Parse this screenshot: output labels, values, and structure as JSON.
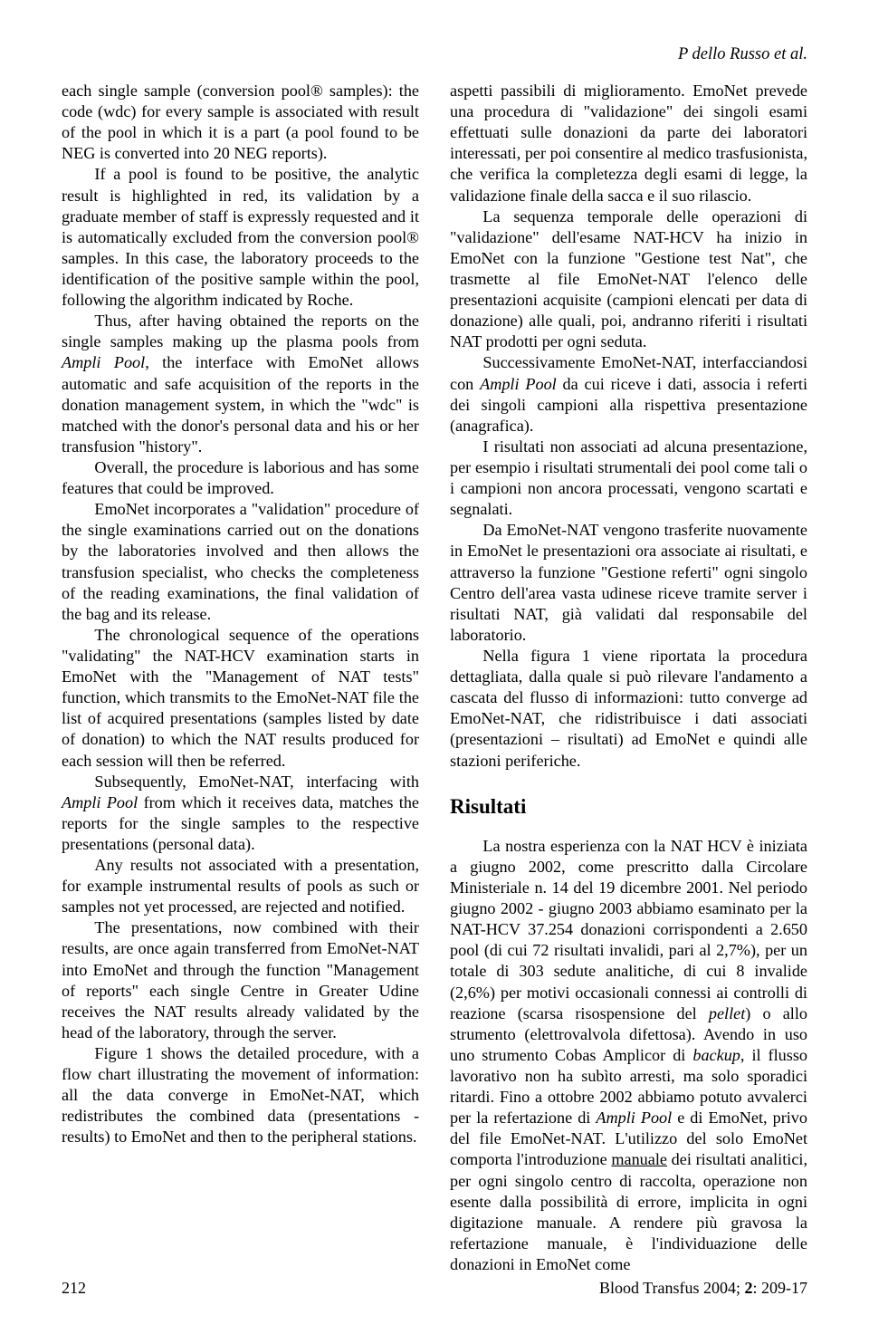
{
  "running_head": "P dello Russo et al.",
  "left": {
    "p1": "each single sample (conversion pool® samples): the code (wdc) for every sample is associated with result of the pool in which it is a part (a pool found to be NEG is converted into 20 NEG reports).",
    "p2": "If a pool is found to be positive, the analytic result is highlighted in red, its validation by a graduate member of staff is expressly requested and it is automatically excluded from the conversion pool® samples. In this case, the laboratory proceeds to the identification of the positive sample within the pool, following the algorithm indicated by Roche.",
    "p3a": "Thus, after having obtained the reports on the single samples making up the plasma pools from ",
    "p3_i": "Ampli Pool",
    "p3b": ", the interface with EmoNet allows automatic and safe acquisition of the reports in the donation management system, in which the \"wdc\" is matched with the donor's personal data and his or her transfusion \"history\".",
    "p4": "Overall, the procedure is laborious and has some features that could be improved.",
    "p5": "EmoNet incorporates a \"validation\" procedure of the single examinations carried out on the donations by the laboratories involved and then allows the transfusion specialist, who checks the completeness of the reading examinations, the final validation of the bag and its release.",
    "p6": "The chronological sequence of the operations \"validating\" the NAT-HCV examination starts in EmoNet with the \"Management of NAT tests\" function, which transmits to the EmoNet-NAT file the list of acquired presentations (samples listed by date of donation) to which the NAT results produced for each session will then be referred.",
    "p7a": "Subsequently, EmoNet-NAT, interfacing with ",
    "p7_i": "Ampli Pool",
    "p7b": " from which it receives data, matches the reports for the single samples to the respective presentations (personal data).",
    "p8": "Any results not associated with a presentation, for example instrumental results of pools as such or samples not yet processed, are rejected and notified.",
    "p9": "The presentations, now combined with their results, are once again transferred from EmoNet-NAT into EmoNet and through the function \"Management of reports\" each single Centre in Greater Udine receives the NAT results already validated by the head of the laboratory, through the server.",
    "p10": "Figure 1 shows the detailed procedure, with a flow chart illustrating the movement of information: all the data converge in EmoNet-NAT, which redistributes the combined data (presentations - results) to EmoNet and then to the peripheral stations."
  },
  "right": {
    "p1": "aspetti passibili di miglioramento. EmoNet prevede una procedura di \"validazione\" dei singoli esami effettuati sulle donazioni da parte dei laboratori interessati, per poi consentire al medico trasfusionista, che verifica la completezza degli esami di legge, la validazione finale della sacca e il suo rilascio.",
    "p2": "La sequenza temporale delle operazioni di \"validazione\" dell'esame NAT-HCV ha inizio in EmoNet con la funzione \"Gestione test Nat\", che trasmette al file EmoNet-NAT l'elenco delle presentazioni acquisite (campioni elencati per data di donazione) alle quali, poi, andranno riferiti i risultati NAT prodotti per ogni seduta.",
    "p3a": "Successivamente EmoNet-NAT, interfacciandosi con ",
    "p3_i": "Ampli Pool",
    "p3b": " da cui riceve i dati, associa i referti dei singoli campioni alla rispettiva presentazione (anagrafica).",
    "p4": "I risultati non associati ad alcuna presentazione, per esempio i risultati strumentali dei pool come tali o i campioni non ancora processati, vengono scartati e segnalati.",
    "p5": "Da EmoNet-NAT vengono trasferite nuovamente in EmoNet le presentazioni ora associate ai risultati, e attraverso la funzione \"Gestione referti\" ogni singolo Centro dell'area vasta udinese riceve tramite server i risultati NAT, già validati dal responsabile del laboratorio.",
    "p6": "Nella figura 1 viene riportata la procedura dettagliata, dalla quale si può rilevare l'andamento a cascata del flusso di informazioni: tutto converge ad EmoNet-NAT, che ridistribuisce i dati associati (presentazioni – risultati) ad EmoNet e quindi alle stazioni periferiche.",
    "section": "Risultati",
    "p7a": "La nostra esperienza con la NAT HCV è iniziata a giugno 2002, come prescritto dalla Circolare Ministeriale n. 14 del 19 dicembre 2001. Nel periodo giugno 2002 - giugno 2003 abbiamo esaminato per la NAT-HCV 37.254 donazioni corrispondenti a 2.650 pool (di cui 72 risultati invalidi, pari al 2,7%), per un totale di 303 sedute analitiche, di cui 8 invalide (2,6%) per motivi occasionali connessi ai controlli di reazione (scarsa risospensione del ",
    "p7_i1": "pellet",
    "p7b": ") o allo strumento (elettrovalvola difettosa). Avendo in uso uno strumento Cobas Amplicor di ",
    "p7_i2": "backup",
    "p7c": ", il flusso lavorativo non ha subìto arresti, ma solo sporadici ritardi. Fino a ottobre 2002 abbiamo potuto avvalerci per la refertazione di ",
    "p7_i3": "Ampli Pool",
    "p7d": " e di EmoNet, privo del file EmoNet-NAT. L'utilizzo del solo EmoNet comporta l'introduzione ",
    "p7_u": "manuale",
    "p7e": " dei risultati analitici, per ogni singolo centro di raccolta, operazione non esente dalla possibilità di errore, implicita in ogni digitazione manuale. A rendere più gravosa la refertazione manuale, è l'individuazione delle donazioni in EmoNet come"
  },
  "footer": {
    "page": "212",
    "cite_a": "Blood Transfus 2004; ",
    "cite_b": "2",
    "cite_c": ": 209-17"
  }
}
